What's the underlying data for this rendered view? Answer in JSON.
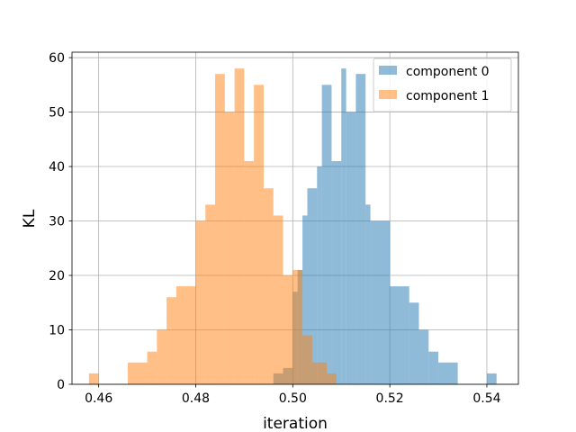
{
  "chart_data": {
    "type": "histogram",
    "xlabel": "iteration",
    "ylabel": "KL",
    "xlim": [
      0.4545,
      0.5465
    ],
    "ylim": [
      0,
      61
    ],
    "xticks": [
      0.46,
      0.48,
      0.5,
      0.52,
      0.54
    ],
    "xtick_labels": [
      "0.46",
      "0.48",
      "0.50",
      "0.52",
      "0.54"
    ],
    "yticks": [
      0,
      10,
      20,
      30,
      40,
      50,
      60
    ],
    "ytick_labels": [
      "0",
      "10",
      "20",
      "30",
      "40",
      "50",
      "60"
    ],
    "grid": true,
    "legend_position": "upper right",
    "series": [
      {
        "name": "component 0",
        "color": "#1f77b4",
        "alpha": 0.5,
        "bins": [
          {
            "x0": 0.496,
            "x1": 0.498,
            "count": 2
          },
          {
            "x0": 0.498,
            "x1": 0.5,
            "count": 3
          },
          {
            "x0": 0.5,
            "x1": 0.501,
            "count": 17
          },
          {
            "x0": 0.501,
            "x1": 0.502,
            "count": 21
          },
          {
            "x0": 0.502,
            "x1": 0.503,
            "count": 31
          },
          {
            "x0": 0.503,
            "x1": 0.505,
            "count": 36
          },
          {
            "x0": 0.505,
            "x1": 0.506,
            "count": 40
          },
          {
            "x0": 0.506,
            "x1": 0.508,
            "count": 55
          },
          {
            "x0": 0.508,
            "x1": 0.51,
            "count": 41
          },
          {
            "x0": 0.51,
            "x1": 0.511,
            "count": 58
          },
          {
            "x0": 0.511,
            "x1": 0.513,
            "count": 50
          },
          {
            "x0": 0.513,
            "x1": 0.515,
            "count": 57
          },
          {
            "x0": 0.515,
            "x1": 0.516,
            "count": 33
          },
          {
            "x0": 0.516,
            "x1": 0.52,
            "count": 30
          },
          {
            "x0": 0.52,
            "x1": 0.524,
            "count": 18
          },
          {
            "x0": 0.524,
            "x1": 0.526,
            "count": 15
          },
          {
            "x0": 0.526,
            "x1": 0.528,
            "count": 10
          },
          {
            "x0": 0.528,
            "x1": 0.53,
            "count": 6
          },
          {
            "x0": 0.53,
            "x1": 0.534,
            "count": 4
          },
          {
            "x0": 0.54,
            "x1": 0.542,
            "count": 2
          }
        ]
      },
      {
        "name": "component 1",
        "color": "#ff7f0e",
        "alpha": 0.5,
        "bins": [
          {
            "x0": 0.458,
            "x1": 0.46,
            "count": 2
          },
          {
            "x0": 0.466,
            "x1": 0.47,
            "count": 4
          },
          {
            "x0": 0.47,
            "x1": 0.472,
            "count": 6
          },
          {
            "x0": 0.472,
            "x1": 0.474,
            "count": 10
          },
          {
            "x0": 0.474,
            "x1": 0.476,
            "count": 16
          },
          {
            "x0": 0.476,
            "x1": 0.48,
            "count": 18
          },
          {
            "x0": 0.48,
            "x1": 0.482,
            "count": 30
          },
          {
            "x0": 0.482,
            "x1": 0.484,
            "count": 33
          },
          {
            "x0": 0.484,
            "x1": 0.486,
            "count": 57
          },
          {
            "x0": 0.486,
            "x1": 0.488,
            "count": 50
          },
          {
            "x0": 0.488,
            "x1": 0.49,
            "count": 58
          },
          {
            "x0": 0.49,
            "x1": 0.492,
            "count": 41
          },
          {
            "x0": 0.492,
            "x1": 0.494,
            "count": 55
          },
          {
            "x0": 0.494,
            "x1": 0.496,
            "count": 36
          },
          {
            "x0": 0.496,
            "x1": 0.498,
            "count": 31
          },
          {
            "x0": 0.498,
            "x1": 0.5,
            "count": 20
          },
          {
            "x0": 0.5,
            "x1": 0.502,
            "count": 21
          },
          {
            "x0": 0.502,
            "x1": 0.504,
            "count": 9
          },
          {
            "x0": 0.504,
            "x1": 0.507,
            "count": 4
          },
          {
            "x0": 0.507,
            "x1": 0.509,
            "count": 2
          }
        ]
      }
    ]
  }
}
